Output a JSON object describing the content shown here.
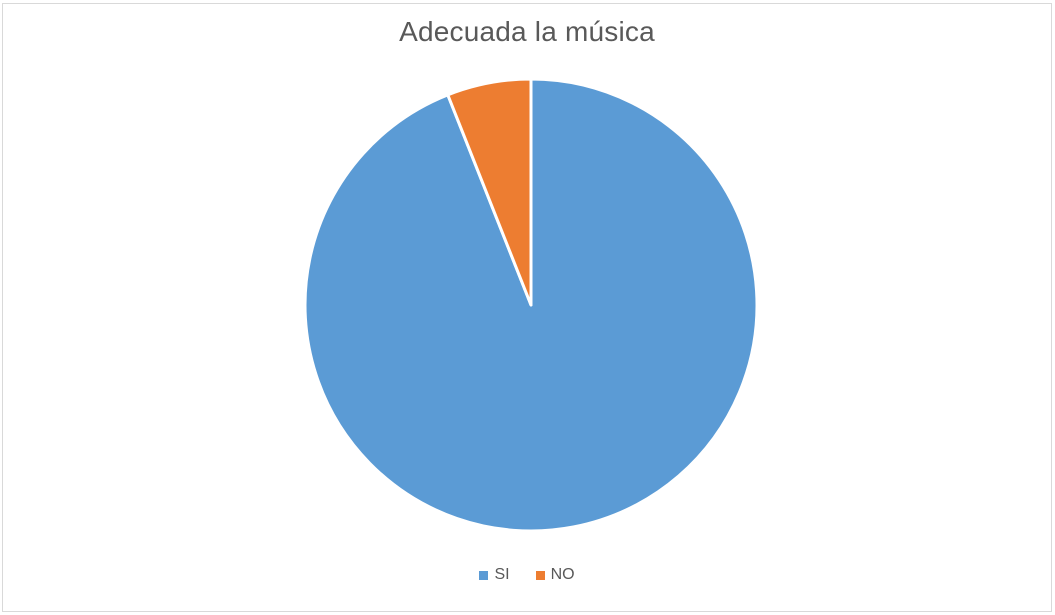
{
  "chart_data": {
    "type": "pie",
    "title": "Adecuada la música",
    "categories": [
      "SI",
      "NO"
    ],
    "values": [
      94,
      6
    ],
    "colors": [
      "#5b9bd5",
      "#ed7d31"
    ],
    "start_angle_deg": 0,
    "direction": "clockwise",
    "legend_position": "bottom"
  }
}
